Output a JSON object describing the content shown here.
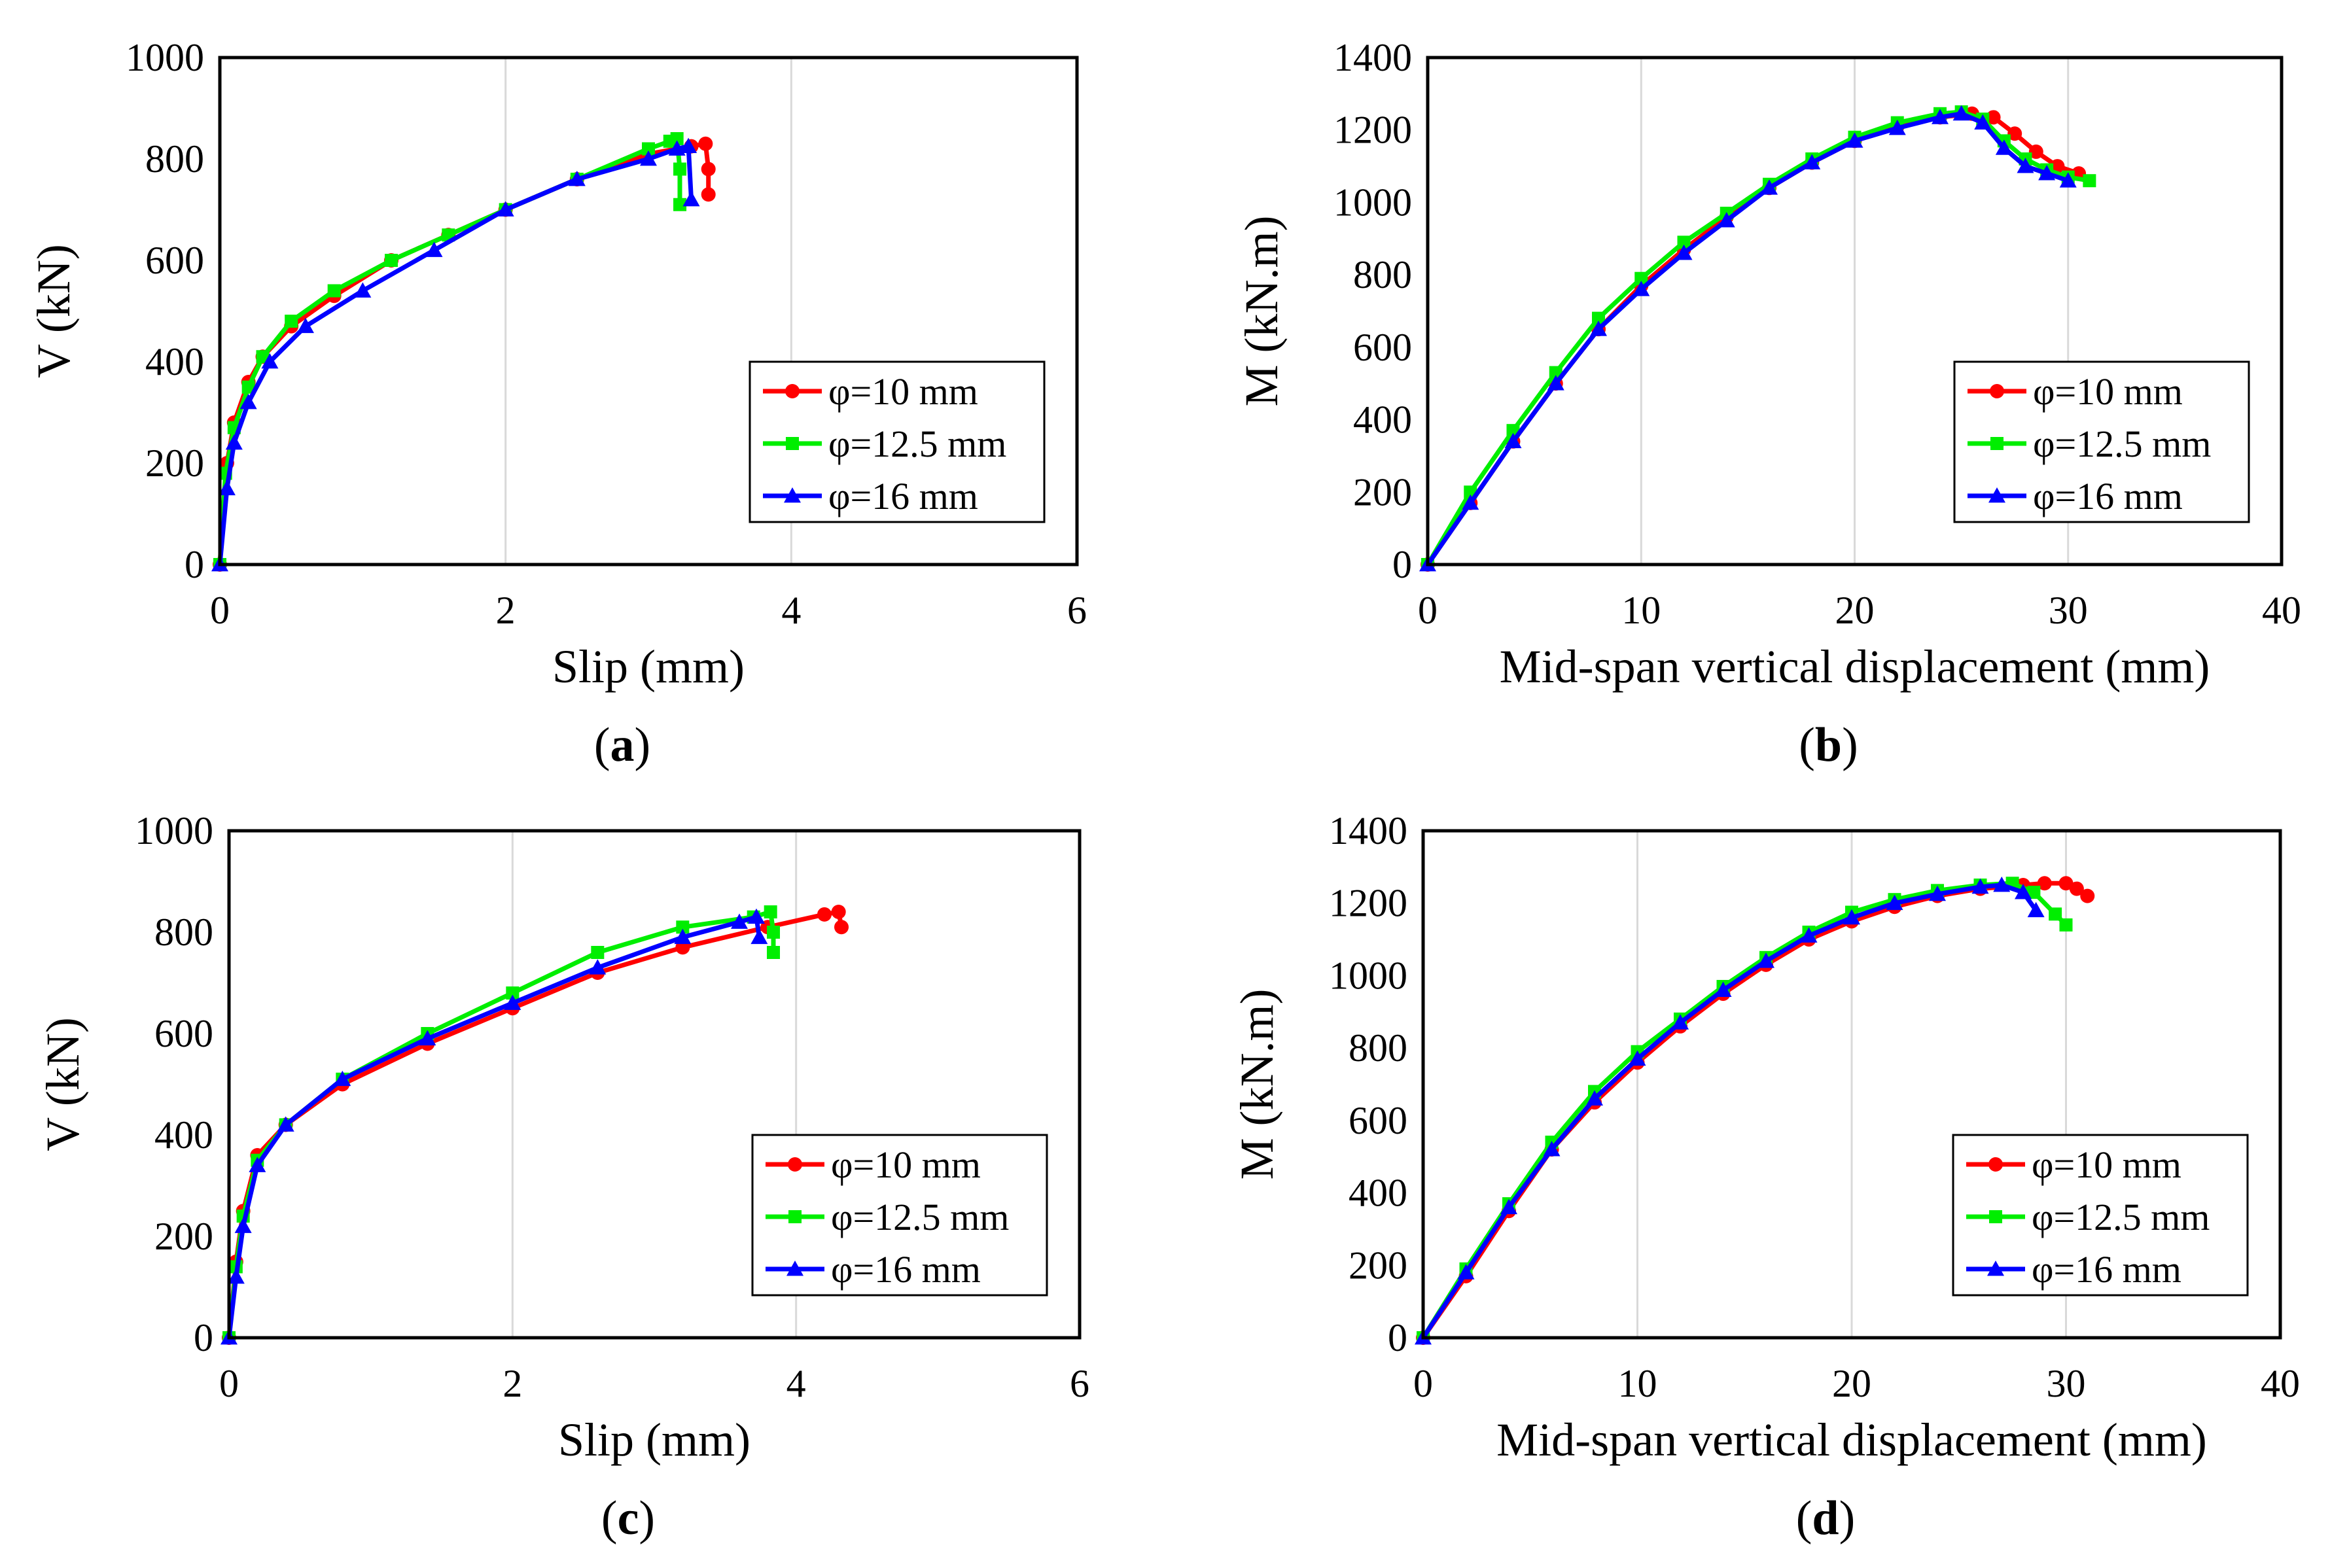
{
  "figure": {
    "colors": {
      "phi10": "#ff0000",
      "phi12_5": "#00ee00",
      "phi16": "#0000ff",
      "grid": "#d9d9d9",
      "frame": "#000000"
    }
  },
  "chart_data": [
    {
      "id": "a",
      "caption_letter": "a",
      "type": "line",
      "title": "",
      "xlabel": "Slip (mm)",
      "ylabel": "V (kN)",
      "xlim": [
        0,
        6
      ],
      "ylim": [
        0,
        1000
      ],
      "xticks": [
        0,
        2,
        4,
        6
      ],
      "yticks": [
        0,
        200,
        400,
        600,
        800,
        1000
      ],
      "xtick_labels": [
        "0",
        "2",
        "4",
        "6"
      ],
      "ytick_labels": [
        "0",
        "200",
        "400",
        "600",
        "800",
        "1000"
      ],
      "grid": "vertical",
      "legend_position": "bottom-right",
      "series": [
        {
          "name": "φ=10 mm",
          "color": "#ff0000",
          "marker": "circle",
          "x": [
            0,
            0.05,
            0.1,
            0.2,
            0.3,
            0.5,
            0.8,
            1.2,
            1.6,
            2.0,
            2.5,
            3.0,
            3.3,
            3.4,
            3.42,
            3.42
          ],
          "y": [
            0,
            200,
            280,
            360,
            410,
            470,
            530,
            600,
            650,
            700,
            760,
            810,
            825,
            830,
            780,
            730
          ]
        },
        {
          "name": "φ=12.5 mm",
          "color": "#00ee00",
          "marker": "square",
          "x": [
            0,
            0.04,
            0.1,
            0.2,
            0.3,
            0.5,
            0.8,
            1.2,
            1.6,
            2.0,
            2.5,
            3.0,
            3.15,
            3.2,
            3.22,
            3.22
          ],
          "y": [
            0,
            180,
            270,
            350,
            410,
            480,
            540,
            600,
            650,
            700,
            760,
            820,
            835,
            840,
            780,
            710
          ]
        },
        {
          "name": "φ=16 mm",
          "color": "#0000ff",
          "marker": "triangle",
          "x": [
            0,
            0.05,
            0.1,
            0.2,
            0.35,
            0.6,
            1.0,
            1.5,
            2.0,
            2.5,
            3.0,
            3.2,
            3.28,
            3.3
          ],
          "y": [
            0,
            150,
            240,
            320,
            400,
            470,
            540,
            620,
            700,
            760,
            800,
            820,
            825,
            720
          ]
        }
      ]
    },
    {
      "id": "b",
      "caption_letter": "b",
      "type": "line",
      "title": "",
      "xlabel": "Mid-span vertical displacement (mm)",
      "ylabel": "M (kN.m)",
      "xlim": [
        0,
        40
      ],
      "ylim": [
        0,
        1400
      ],
      "xticks": [
        0,
        10,
        20,
        30,
        40
      ],
      "yticks": [
        0,
        200,
        400,
        600,
        800,
        1000,
        1200,
        1400
      ],
      "xtick_labels": [
        "0",
        "10",
        "20",
        "30",
        "40"
      ],
      "ytick_labels": [
        "0",
        "200",
        "400",
        "600",
        "800",
        "1000",
        "1200",
        "1400"
      ],
      "grid": "vertical",
      "legend_position": "bottom-right",
      "series": [
        {
          "name": "φ=10 mm",
          "color": "#ff0000",
          "marker": "circle",
          "x": [
            0,
            2,
            4,
            6,
            8,
            10,
            12,
            14,
            16,
            18,
            20,
            22,
            24,
            25.5,
            26.5,
            27.5,
            28.5,
            29.5,
            30.5
          ],
          "y": [
            0,
            170,
            340,
            500,
            650,
            770,
            870,
            960,
            1040,
            1110,
            1170,
            1210,
            1235,
            1245,
            1235,
            1190,
            1140,
            1100,
            1080
          ]
        },
        {
          "name": "φ=12.5 mm",
          "color": "#00ee00",
          "marker": "square",
          "x": [
            0,
            2,
            4,
            6,
            8,
            10,
            12,
            14,
            16,
            18,
            20,
            22,
            24,
            25,
            26,
            27,
            28,
            29,
            30,
            31
          ],
          "y": [
            0,
            200,
            370,
            530,
            680,
            790,
            890,
            970,
            1050,
            1120,
            1180,
            1220,
            1245,
            1250,
            1230,
            1170,
            1120,
            1090,
            1070,
            1060
          ]
        },
        {
          "name": "φ=16 mm",
          "color": "#0000ff",
          "marker": "triangle",
          "x": [
            0,
            2,
            4,
            6,
            8,
            10,
            12,
            14,
            16,
            18,
            20,
            22,
            24,
            25,
            26,
            27,
            28,
            29,
            30
          ],
          "y": [
            0,
            170,
            340,
            500,
            650,
            760,
            860,
            950,
            1040,
            1110,
            1170,
            1205,
            1235,
            1245,
            1220,
            1150,
            1100,
            1080,
            1060
          ]
        }
      ]
    },
    {
      "id": "c",
      "caption_letter": "c",
      "type": "line",
      "title": "",
      "xlabel": "Slip (mm)",
      "ylabel": "V (kN)",
      "xlim": [
        0,
        6
      ],
      "ylim": [
        0,
        1000
      ],
      "xticks": [
        0,
        2,
        4,
        6
      ],
      "yticks": [
        0,
        200,
        400,
        600,
        800,
        1000
      ],
      "xtick_labels": [
        "0",
        "2",
        "4",
        "6"
      ],
      "ytick_labels": [
        "0",
        "200",
        "400",
        "600",
        "800",
        "1000"
      ],
      "grid": "vertical",
      "legend_position": "bottom-right",
      "series": [
        {
          "name": "φ=10 mm",
          "color": "#ff0000",
          "marker": "circle",
          "x": [
            0,
            0.05,
            0.1,
            0.2,
            0.4,
            0.8,
            1.4,
            2.0,
            2.6,
            3.2,
            3.8,
            4.2,
            4.3,
            4.32
          ],
          "y": [
            0,
            150,
            250,
            360,
            420,
            500,
            580,
            650,
            720,
            770,
            810,
            835,
            840,
            810
          ]
        },
        {
          "name": "φ=12.5 mm",
          "color": "#00ee00",
          "marker": "square",
          "x": [
            0,
            0.05,
            0.1,
            0.2,
            0.4,
            0.8,
            1.4,
            2.0,
            2.6,
            3.2,
            3.7,
            3.82,
            3.84,
            3.84
          ],
          "y": [
            0,
            140,
            240,
            350,
            420,
            510,
            600,
            680,
            760,
            810,
            830,
            840,
            800,
            760
          ]
        },
        {
          "name": "φ=16 mm",
          "color": "#0000ff",
          "marker": "triangle",
          "x": [
            0,
            0.05,
            0.1,
            0.2,
            0.4,
            0.8,
            1.4,
            2.0,
            2.6,
            3.2,
            3.6,
            3.72,
            3.74
          ],
          "y": [
            0,
            120,
            220,
            340,
            420,
            510,
            590,
            660,
            730,
            790,
            820,
            830,
            790
          ]
        }
      ]
    },
    {
      "id": "d",
      "caption_letter": "d",
      "type": "line",
      "title": "",
      "xlabel": "Mid-span vertical displacement (mm)",
      "ylabel": "M (kN.m)",
      "xlim": [
        0,
        40
      ],
      "ylim": [
        0,
        1400
      ],
      "xticks": [
        0,
        10,
        20,
        30,
        40
      ],
      "yticks": [
        0,
        200,
        400,
        600,
        800,
        1000,
        1200,
        1400
      ],
      "xtick_labels": [
        "0",
        "10",
        "20",
        "30",
        "40"
      ],
      "ytick_labels": [
        "0",
        "200",
        "400",
        "600",
        "800",
        "1000",
        "1200",
        "1400"
      ],
      "grid": "vertical",
      "legend_position": "bottom-right",
      "series": [
        {
          "name": "φ=10 mm",
          "color": "#ff0000",
          "marker": "circle",
          "x": [
            0,
            2,
            4,
            6,
            8,
            10,
            12,
            14,
            16,
            18,
            20,
            22,
            24,
            26,
            28,
            29,
            30,
            30.5,
            31
          ],
          "y": [
            0,
            170,
            350,
            520,
            650,
            760,
            860,
            950,
            1030,
            1100,
            1150,
            1190,
            1220,
            1240,
            1250,
            1255,
            1255,
            1240,
            1220
          ]
        },
        {
          "name": "φ=12.5 mm",
          "color": "#00ee00",
          "marker": "square",
          "x": [
            0,
            2,
            4,
            6,
            8,
            10,
            12,
            14,
            16,
            18,
            20,
            22,
            24,
            26,
            27.5,
            28.5,
            29.5,
            30
          ],
          "y": [
            0,
            190,
            370,
            540,
            680,
            790,
            880,
            970,
            1050,
            1120,
            1175,
            1210,
            1235,
            1250,
            1255,
            1230,
            1170,
            1140
          ]
        },
        {
          "name": "φ=16 mm",
          "color": "#0000ff",
          "marker": "triangle",
          "x": [
            0,
            2,
            4,
            6,
            8,
            10,
            12,
            14,
            16,
            18,
            20,
            22,
            24,
            26,
            27,
            28,
            28.6
          ],
          "y": [
            0,
            180,
            360,
            520,
            660,
            770,
            870,
            960,
            1040,
            1110,
            1160,
            1200,
            1225,
            1245,
            1250,
            1230,
            1180
          ]
        }
      ]
    }
  ]
}
